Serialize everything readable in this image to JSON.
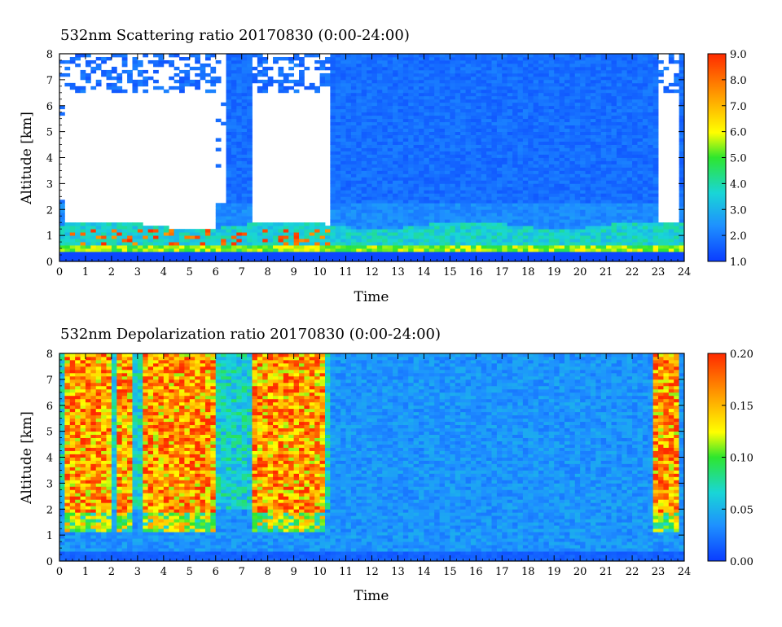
{
  "chart_data": [
    {
      "type": "heatmap",
      "title": "532nm Scattering ratio  20170830 (0:00-24:00)",
      "xlabel": "Time",
      "ylabel": "Altitude [km]",
      "xlim": [
        0,
        24
      ],
      "ylim": [
        0,
        8
      ],
      "xticks": [
        "0",
        "1",
        "2",
        "3",
        "4",
        "5",
        "6",
        "7",
        "8",
        "9",
        "10",
        "11",
        "12",
        "13",
        "14",
        "15",
        "16",
        "17",
        "18",
        "19",
        "20",
        "21",
        "22",
        "23",
        "24"
      ],
      "yticks": [
        "0",
        "1",
        "2",
        "3",
        "4",
        "5",
        "6",
        "7",
        "8"
      ],
      "colorbar": {
        "min": 1.0,
        "max": 9.0,
        "ticks": [
          "1.0",
          "2.0",
          "3.0",
          "4.0",
          "5.0",
          "6.0",
          "7.0",
          "8.0",
          "9.0"
        ],
        "colormap": [
          "#0a3cff",
          "#1e90ff",
          "#19d6d6",
          "#2ee62e",
          "#ffff00",
          "#ff9c00",
          "#ff2a00"
        ]
      },
      "no_data_color": "#ffffff"
    },
    {
      "type": "heatmap",
      "title": "532nm Depolarization ratio  20170830 (0:00-24:00)",
      "xlabel": "Time",
      "ylabel": "Altitude [km]",
      "xlim": [
        0,
        24
      ],
      "ylim": [
        0,
        8
      ],
      "xticks": [
        "0",
        "1",
        "2",
        "3",
        "4",
        "5",
        "6",
        "7",
        "8",
        "9",
        "10",
        "11",
        "12",
        "13",
        "14",
        "15",
        "16",
        "17",
        "18",
        "19",
        "20",
        "21",
        "22",
        "23",
        "24"
      ],
      "yticks": [
        "0",
        "1",
        "2",
        "3",
        "4",
        "5",
        "6",
        "7",
        "8"
      ],
      "colorbar": {
        "min": 0.0,
        "max": 0.2,
        "ticks": [
          "0.00",
          "0.05",
          "0.10",
          "0.15",
          "0.20"
        ],
        "colormap": [
          "#0a3cff",
          "#1e90ff",
          "#19d6d6",
          "#2ee62e",
          "#ffff00",
          "#ff9c00",
          "#ff2a00"
        ]
      },
      "no_data_color": "#ffffff"
    }
  ]
}
